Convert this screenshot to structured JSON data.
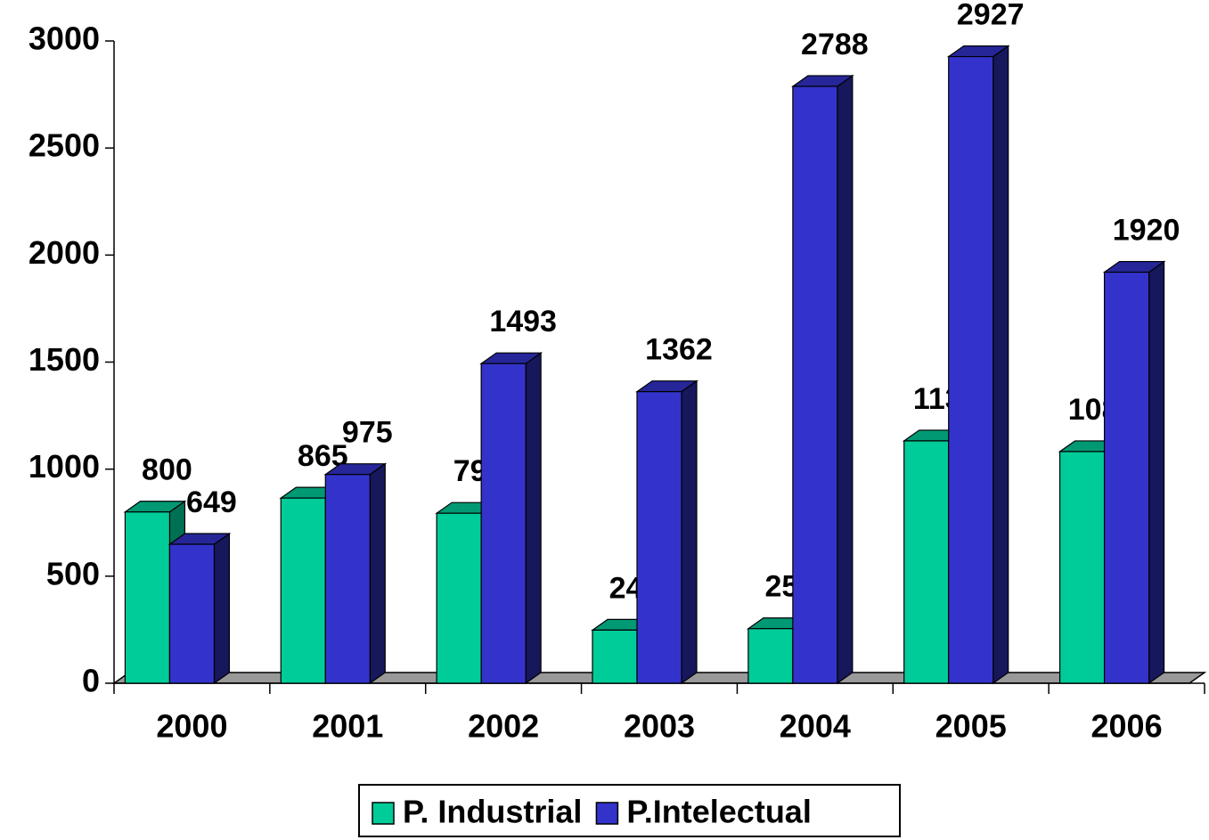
{
  "chart_data": {
    "type": "bar3d",
    "categories": [
      "2000",
      "2001",
      "2002",
      "2003",
      "2004",
      "2005",
      "2006"
    ],
    "series": [
      {
        "name": "P. Industrial",
        "color": "#00cc99",
        "values": [
          800,
          865,
          794,
          248,
          255,
          1132,
          1082
        ]
      },
      {
        "name": "P.Intelectual",
        "color": "#3333cc",
        "values": [
          649,
          975,
          1493,
          1362,
          2788,
          2927,
          1920
        ]
      }
    ],
    "ylim": [
      0,
      3000
    ],
    "yticks": [
      0,
      500,
      1000,
      1500,
      2000,
      2500,
      3000
    ],
    "legend": "bottom"
  }
}
